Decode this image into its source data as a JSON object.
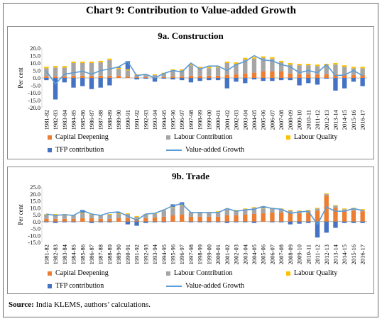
{
  "title": "Chart 9: Contribution to Value-added Growth",
  "source_label": "Source:",
  "source_text": "India KLEMS, authors’ calculations.",
  "colors": {
    "capital": "#ed7d31",
    "labour": "#a5a5a5",
    "quality": "#ffc000",
    "tfp": "#4472c4",
    "va": "#5b9bd5"
  },
  "legend": {
    "capital": "Capital Deepening",
    "labour": "Labour Contribution",
    "quality": "Labour Quality",
    "tfp": "TFP contribution",
    "va": "Value-added Growth"
  },
  "chart_data": [
    {
      "type": "bar",
      "stacked": true,
      "title": "9a. Construction",
      "ylabel": "Per cent",
      "ylim": [
        -20,
        20
      ],
      "yticks": [
        "20.0",
        "15.0",
        "10.0",
        "5.0",
        "0.0",
        "-5.0",
        "-10.0",
        "-15.0",
        "-20.0"
      ],
      "categories": [
        "1981-82",
        "1982-83",
        "1983-84",
        "1984-85",
        "1985-86",
        "1986-87",
        "1987-88",
        "1988-89",
        "1989-90",
        "1990-91",
        "1991-92",
        "1992-93",
        "1993-94",
        "1994-95",
        "1995-96",
        "1996-97",
        "1997-98",
        "1998-99",
        "1999-00",
        "2000-01",
        "2001-02",
        "2002-03",
        "2003-04",
        "2004-05",
        "2005-06",
        "2006-07",
        "2007-08",
        "2008-09",
        "2009-10",
        "2010-11",
        "2011-12",
        "2012-13",
        "2013-14",
        "2014-15",
        "2015-16",
        "2016-17"
      ],
      "series": [
        {
          "name": "Capital Deepening",
          "color_key": "capital",
          "values": [
            1.0,
            1.0,
            1.0,
            1.5,
            1.5,
            1.5,
            1.5,
            1.5,
            1.5,
            1.0,
            0.5,
            0.5,
            0.5,
            0.5,
            1.0,
            1.0,
            1.5,
            1.5,
            1.5,
            1.5,
            2.0,
            2.5,
            3.0,
            3.5,
            4.5,
            4.5,
            4.5,
            3.0,
            2.5,
            2.5,
            2.5,
            2.5,
            2.5,
            2.0,
            2.0,
            2.0
          ]
        },
        {
          "name": "Labour Contribution",
          "color_key": "labour",
          "values": [
            5.5,
            6.0,
            6.0,
            8.5,
            8.5,
            8.5,
            9.0,
            10.5,
            4.5,
            4.0,
            1.5,
            1.5,
            1.5,
            2.5,
            4.0,
            4.0,
            7.0,
            5.0,
            5.0,
            5.5,
            8.0,
            7.0,
            9.5,
            9.5,
            9.0,
            8.5,
            6.0,
            6.0,
            6.0,
            6.0,
            5.5,
            6.0,
            6.5,
            5.5,
            4.5,
            4.5
          ]
        },
        {
          "name": "Labour Quality",
          "color_key": "quality",
          "values": [
            1.0,
            1.0,
            1.0,
            1.0,
            1.0,
            1.0,
            1.0,
            1.0,
            0.8,
            0.8,
            0.5,
            0.5,
            0.5,
            0.5,
            0.8,
            0.8,
            1.0,
            1.0,
            1.0,
            1.0,
            1.0,
            1.0,
            1.0,
            1.0,
            1.0,
            1.0,
            1.0,
            1.0,
            1.0,
            1.0,
            1.0,
            1.0,
            1.0,
            1.0,
            1.0,
            1.0
          ]
        },
        {
          "name": "TFP contribution",
          "color_key": "tfp",
          "values": [
            -1.5,
            -14.5,
            -3.0,
            -6.5,
            -5.5,
            -7.5,
            -6.5,
            -5.0,
            0.5,
            5.5,
            -1.0,
            -0.5,
            -2.5,
            -0.5,
            -1.0,
            -1.5,
            -3.0,
            -2.0,
            -1.5,
            -1.5,
            -7.0,
            -2.5,
            -3.5,
            -1.0,
            -2.0,
            -2.0,
            -1.5,
            -1.5,
            -5.0,
            -3.5,
            -4.5,
            -0.5,
            -8.5,
            -7.0,
            -2.5,
            -5.5
          ]
        }
      ],
      "line": {
        "name": "Value-added Growth",
        "color_key": "va",
        "values": [
          4.5,
          -4.0,
          2.5,
          3.5,
          4.5,
          2.5,
          5.0,
          6.0,
          7.5,
          11.0,
          1.5,
          2.5,
          0.0,
          3.0,
          5.0,
          4.0,
          10.0,
          6.0,
          8.0,
          8.0,
          5.0,
          9.0,
          11.0,
          15.0,
          12.0,
          11.5,
          9.0,
          7.5,
          3.5,
          5.0,
          3.5,
          9.0,
          1.5,
          2.0,
          5.0,
          1.5
        ]
      }
    },
    {
      "type": "bar",
      "stacked": true,
      "title": "9b. Trade",
      "ylabel": "Per cent",
      "ylim": [
        -15,
        25
      ],
      "yticks": [
        "25.0",
        "20.0",
        "15.0",
        "10.0",
        "5.0",
        "0.0",
        "-5.0",
        "-10.0",
        "-15.0"
      ],
      "categories": [
        "1981-82",
        "1982-83",
        "1983-84",
        "1984-85",
        "1985-86",
        "1986-87",
        "1987-88",
        "1988-89",
        "1989-90",
        "1990-91",
        "1991-92",
        "1992-93",
        "1993-94",
        "1994-95",
        "1995-96",
        "1996-97",
        "1997-98",
        "1998-99",
        "1999-00",
        "2000-01",
        "2001-02",
        "2002-03",
        "2003-04",
        "2004-05",
        "2005-06",
        "2006-07",
        "2007-08",
        "2008-09",
        "2009-10",
        "2010-11",
        "2011-12",
        "2012-13",
        "2013-14",
        "2014-15",
        "2015-16",
        "2016-17"
      ],
      "series": [
        {
          "name": "Capital Deepening",
          "color_key": "capital",
          "values": [
            2.0,
            2.0,
            2.0,
            2.0,
            2.5,
            2.5,
            2.0,
            2.0,
            2.5,
            2.5,
            2.0,
            2.5,
            3.0,
            3.5,
            4.5,
            5.0,
            3.5,
            3.5,
            3.5,
            3.5,
            4.5,
            4.5,
            5.0,
            5.5,
            6.0,
            6.5,
            6.5,
            6.0,
            6.0,
            6.5,
            8.0,
            19.0,
            10.0,
            7.5,
            8.0,
            7.5
          ]
        },
        {
          "name": "Labour Contribution",
          "color_key": "labour",
          "values": [
            3.0,
            3.0,
            3.0,
            2.5,
            3.5,
            2.5,
            2.5,
            3.0,
            3.0,
            3.0,
            1.5,
            2.5,
            2.5,
            4.5,
            5.5,
            6.5,
            3.0,
            3.0,
            3.0,
            3.5,
            4.5,
            3.5,
            4.0,
            4.5,
            3.5,
            3.0,
            2.5,
            2.0,
            1.5,
            1.5,
            1.5,
            1.0,
            1.5,
            1.5,
            1.5,
            1.0
          ]
        },
        {
          "name": "Labour Quality",
          "color_key": "quality",
          "values": [
            0.5,
            0.5,
            0.5,
            0.5,
            0.5,
            0.5,
            0.5,
            0.5,
            0.5,
            0.5,
            0.5,
            0.5,
            0.5,
            0.5,
            0.5,
            0.5,
            0.5,
            0.5,
            0.5,
            0.5,
            0.5,
            0.5,
            0.5,
            0.5,
            0.5,
            0.5,
            0.5,
            0.5,
            0.5,
            0.5,
            0.5,
            0.5,
            0.5,
            0.5,
            0.5,
            0.5
          ]
        },
        {
          "name": "TFP contribution",
          "color_key": "tfp",
          "values": [
            -0.5,
            -1.0,
            -0.5,
            -0.5,
            2.0,
            -1.0,
            -0.5,
            -0.5,
            0.5,
            -2.0,
            -3.0,
            -1.0,
            -0.5,
            -0.5,
            2.0,
            2.0,
            -0.5,
            -0.5,
            -0.5,
            -0.5,
            -1.0,
            -0.5,
            -0.5,
            -1.0,
            1.0,
            -0.5,
            -0.5,
            -2.0,
            -1.5,
            -1.0,
            -11.5,
            -8.0,
            -4.5,
            -1.0,
            -1.0,
            -1.0
          ]
        }
      ],
      "line": {
        "name": "Value-added Growth",
        "color_key": "va",
        "values": [
          5.5,
          4.5,
          5.0,
          4.5,
          8.0,
          5.5,
          4.5,
          6.5,
          7.0,
          4.0,
          1.0,
          5.5,
          6.0,
          8.5,
          11.5,
          13.0,
          6.5,
          6.5,
          6.5,
          6.5,
          9.5,
          7.5,
          8.5,
          9.0,
          11.0,
          9.5,
          9.0,
          6.0,
          7.0,
          7.5,
          -2.0,
          10.5,
          7.5,
          7.5,
          9.5,
          8.0
        ]
      }
    }
  ]
}
